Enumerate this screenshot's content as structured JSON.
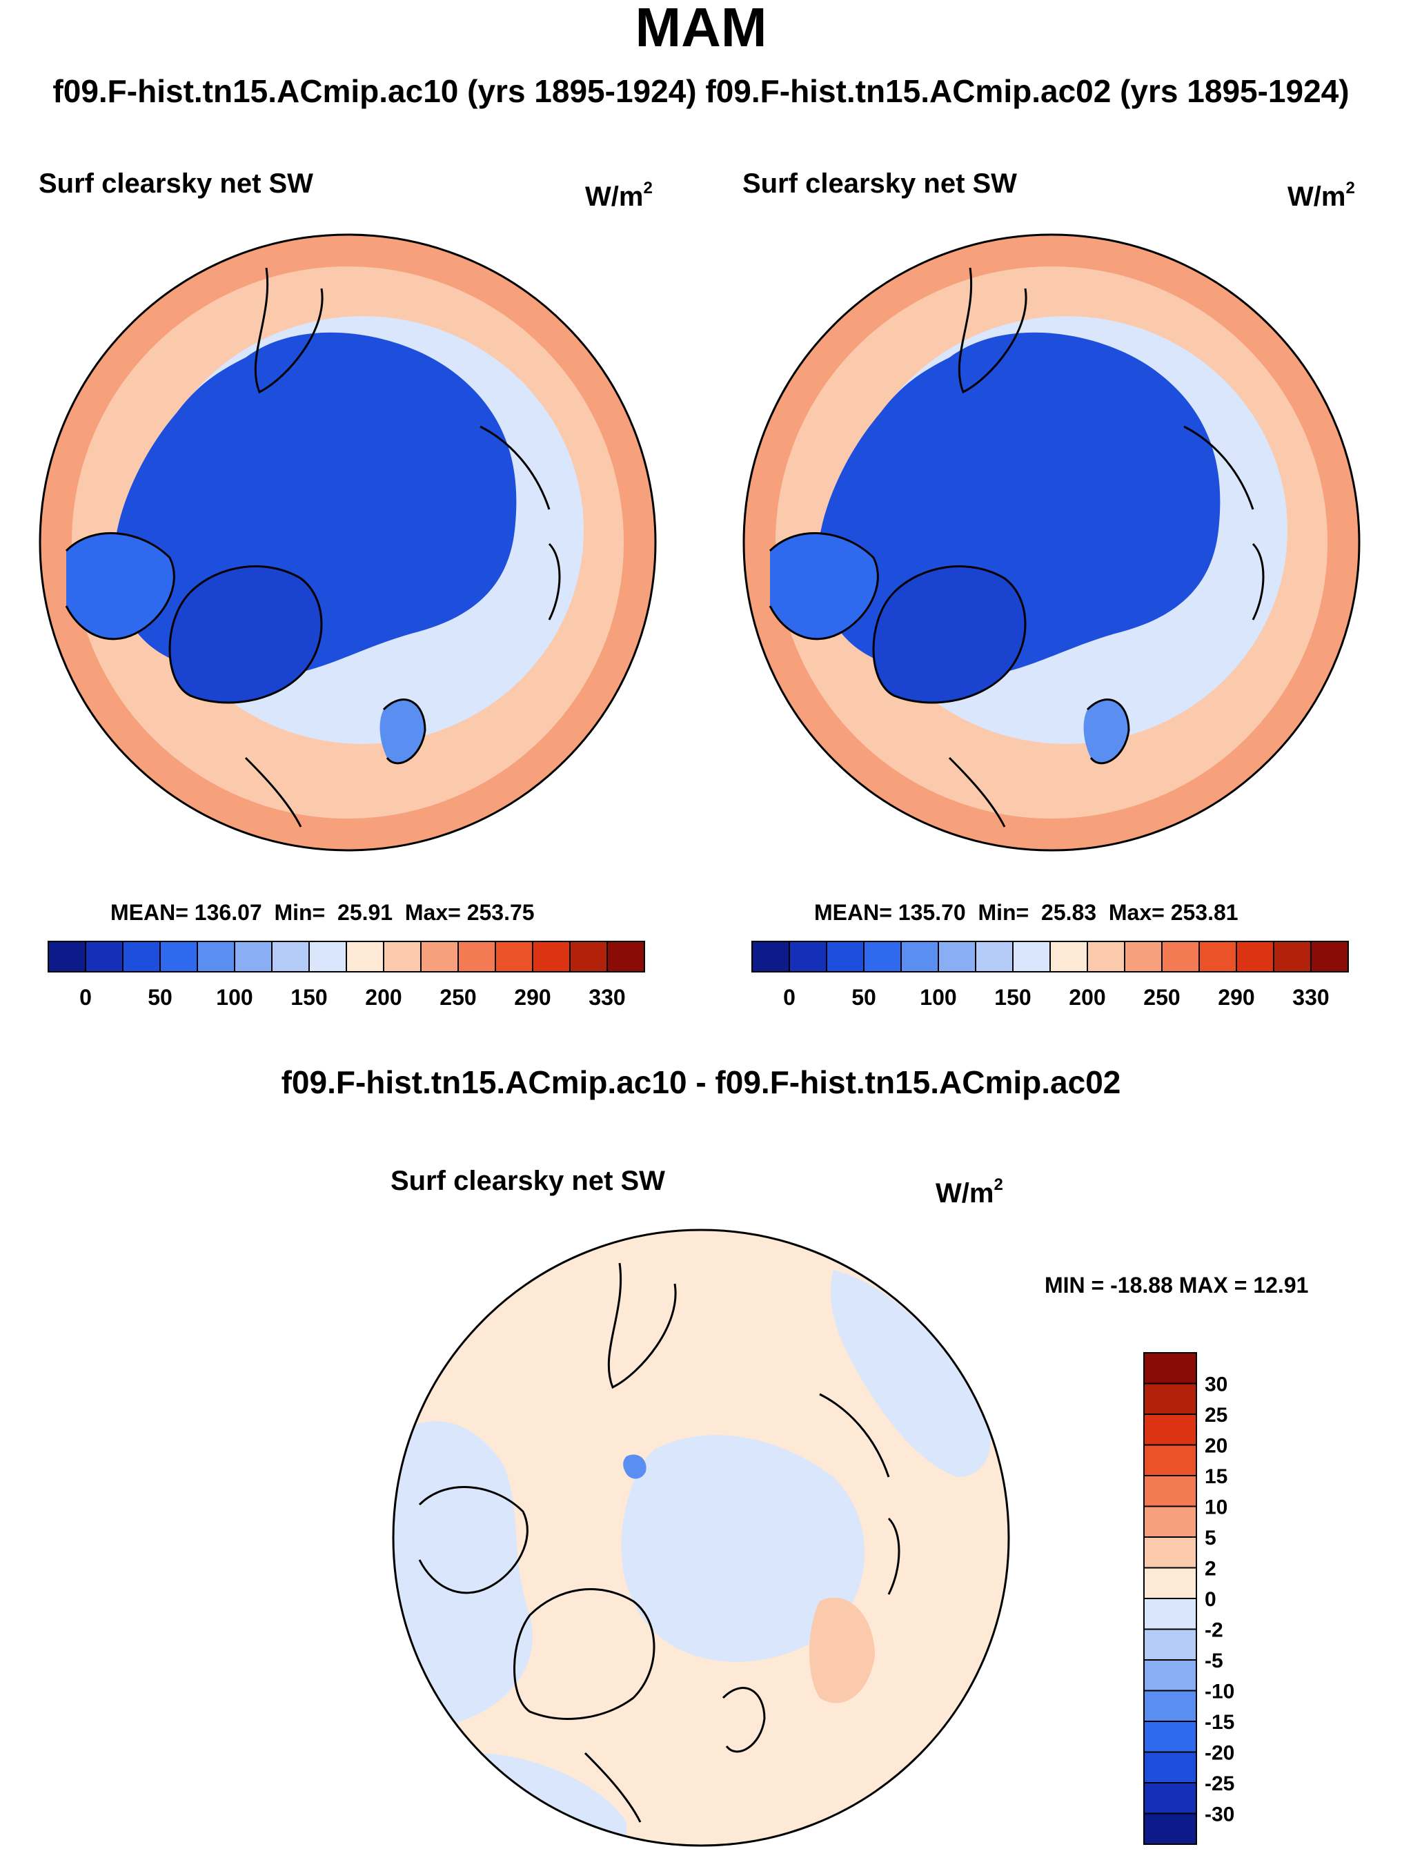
{
  "title": "MAM",
  "header": {
    "case_a": "f09.F-hist.tn15.ACmip.ac10 (yrs 1895-1924)",
    "case_b": "f09.F-hist.tn15.ACmip.ac02 (yrs 1895-1924)"
  },
  "panels": [
    {
      "variable": "Surf clearsky net SW",
      "units_base": "W/m",
      "units_exp": "2",
      "stats": {
        "mean_label": "MEAN=",
        "mean": "136.07",
        "min_label": "Min=",
        "min": "25.91",
        "max_label": "Max=",
        "max": "253.75"
      }
    },
    {
      "variable": "Surf clearsky net SW",
      "units_base": "W/m",
      "units_exp": "2",
      "stats": {
        "mean_label": "MEAN=",
        "mean": "135.70",
        "min_label": "Min=",
        "min": "25.83",
        "max_label": "Max=",
        "max": "253.81"
      }
    }
  ],
  "difference": {
    "title": "f09.F-hist.tn15.ACmip.ac10 - f09.F-hist.tn15.ACmip.ac02",
    "variable": "Surf clearsky net SW",
    "units_base": "W/m",
    "units_exp": "2",
    "minmax": "MIN = -18.88 MAX =  12.91"
  },
  "colorbar_main": {
    "colors": [
      "#0c1a8a",
      "#1530b8",
      "#1e4fdc",
      "#2f6aee",
      "#5a8ef0",
      "#8aaef4",
      "#b4cbf7",
      "#d9e6fb",
      "#fde9d6",
      "#fbcaad",
      "#f7a07c",
      "#f37a52",
      "#ec5228",
      "#dc3312",
      "#b2210a",
      "#8b0c06"
    ],
    "labels": [
      "0",
      "50",
      "100",
      "150",
      "200",
      "250",
      "290",
      "330"
    ]
  },
  "colorbar_diff": {
    "colors": [
      "#8b0c06",
      "#b2210a",
      "#dc3312",
      "#ec5228",
      "#f37a52",
      "#f7a07c",
      "#fbcaad",
      "#fde9d6",
      "#d9e6fb",
      "#b4cbf7",
      "#8aaef4",
      "#5a8ef0",
      "#2f6aee",
      "#1e4fdc",
      "#1530b8",
      "#0c1a8a"
    ],
    "labels": [
      "30",
      "25",
      "20",
      "15",
      "10",
      "5",
      "2",
      "0",
      "-2",
      "-5",
      "-10",
      "-15",
      "-20",
      "-25",
      "-30"
    ]
  },
  "style": {
    "ocean_warm": "#f7a07c",
    "ice_blue": "#1e4fdc",
    "diff_pos": "#fde9d6",
    "diff_neg": "#d9e6fb",
    "coast": "#000000"
  }
}
